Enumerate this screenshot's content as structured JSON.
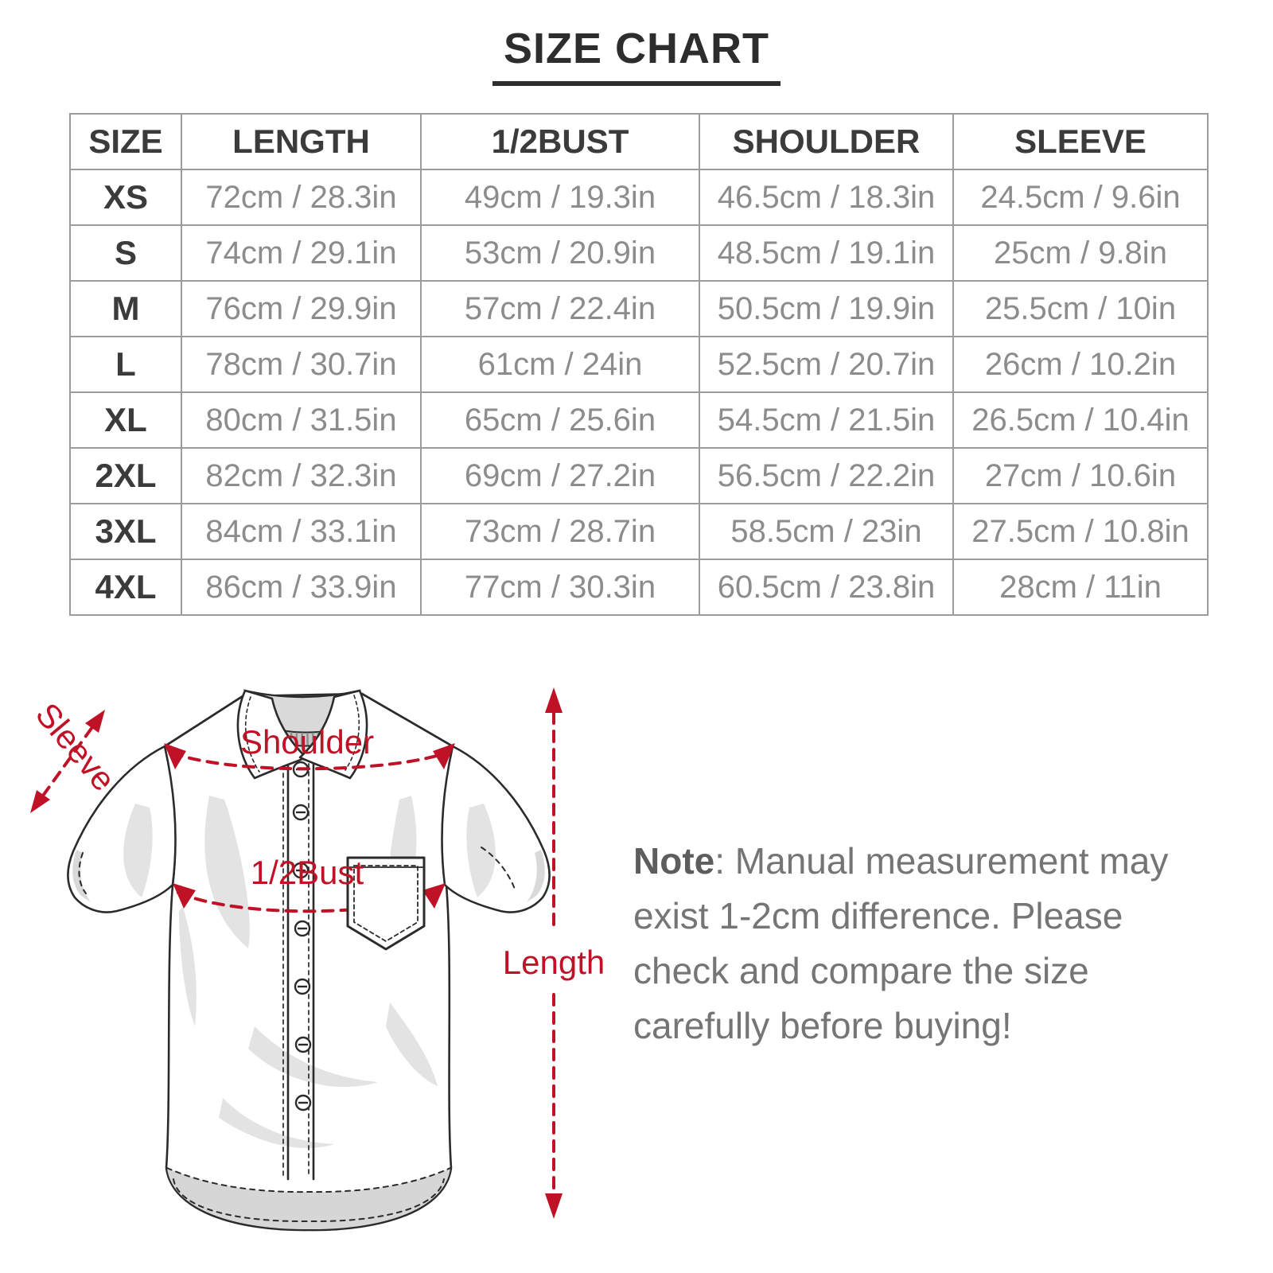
{
  "page_title": "SIZE CHART",
  "chart_data": {
    "type": "table",
    "title": "SIZE CHART",
    "columns": [
      "SIZE",
      "LENGTH",
      "1/2BUST",
      "SHOULDER",
      "SLEEVE"
    ],
    "rows": [
      [
        "XS",
        "72cm / 28.3in",
        "49cm / 19.3in",
        "46.5cm / 18.3in",
        "24.5cm / 9.6in"
      ],
      [
        "S",
        "74cm / 29.1in",
        "53cm / 20.9in",
        "48.5cm / 19.1in",
        "25cm / 9.8in"
      ],
      [
        "M",
        "76cm / 29.9in",
        "57cm / 22.4in",
        "50.5cm / 19.9in",
        "25.5cm / 10in"
      ],
      [
        "L",
        "78cm / 30.7in",
        "61cm / 24in",
        "52.5cm / 20.7in",
        "26cm / 10.2in"
      ],
      [
        "XL",
        "80cm / 31.5in",
        "65cm / 25.6in",
        "54.5cm / 21.5in",
        "26.5cm / 10.4in"
      ],
      [
        "2XL",
        "82cm / 32.3in",
        "69cm / 27.2in",
        "56.5cm / 22.2in",
        "27cm / 10.6in"
      ],
      [
        "3XL",
        "84cm / 33.1in",
        "73cm / 28.7in",
        "58.5cm / 23in",
        "27.5cm / 10.8in"
      ],
      [
        "4XL",
        "86cm / 33.9in",
        "77cm / 30.3in",
        "60.5cm / 23.8in",
        "28cm / 11in"
      ]
    ]
  },
  "diagram": {
    "sleeve_label": "Sleeve",
    "shoulder_label": "Shoulder",
    "bust_label": "1/2Bust",
    "length_label": "Length",
    "accent_color": "#c01226",
    "outline_color": "#2b2b2b"
  },
  "note": {
    "label": "Note",
    "text": ": Manual measurement may exist 1-2cm difference. Please check and compare the size carefully before buying!"
  }
}
